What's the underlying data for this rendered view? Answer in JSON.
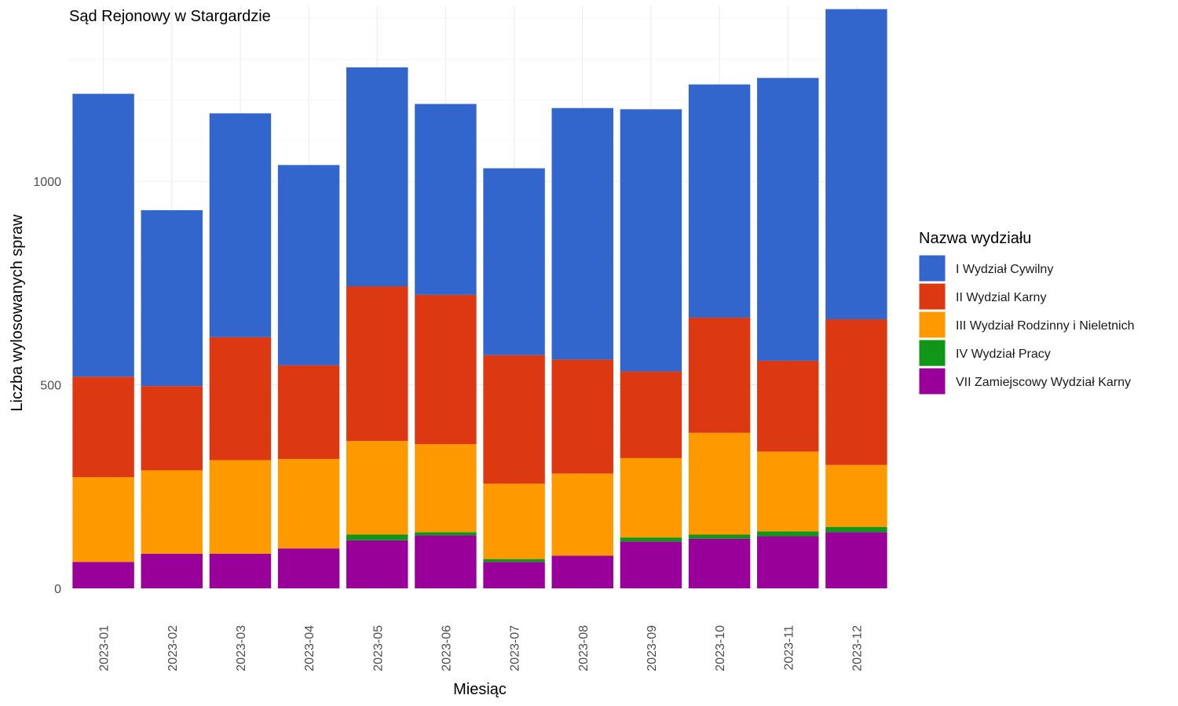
{
  "chart_data": {
    "type": "bar",
    "stacked": true,
    "title": "Sąd Rejonowy w Stargardzie",
    "xlabel": "Miesiąc",
    "ylabel": "Liczba wylosowanych spraw",
    "categories": [
      "2023-01",
      "2023-02",
      "2023-03",
      "2023-04",
      "2023-05",
      "2023-06",
      "2023-07",
      "2023-08",
      "2023-09",
      "2023-10",
      "2023-11",
      "2023-12"
    ],
    "ylim": [
      0,
      1430
    ],
    "yticks": [
      0,
      500,
      1000
    ],
    "grid": true,
    "legend_title": "Nazwa wydziału",
    "legend_position": "right",
    "series": [
      {
        "name": "VII Zamiejscowy Wydział Karny",
        "color": "#990099",
        "values": [
          65,
          85,
          85,
          98,
          118,
          130,
          65,
          80,
          115,
          122,
          128,
          138
        ]
      },
      {
        "name": "IV Wydział Pracy",
        "color": "#109618",
        "values": [
          0,
          0,
          0,
          0,
          14,
          8,
          7,
          0,
          10,
          10,
          12,
          13
        ]
      },
      {
        "name": "III Wydział Rodzinny i Nieletnich",
        "color": "#FF9900",
        "values": [
          208,
          205,
          230,
          220,
          230,
          216,
          185,
          202,
          195,
          250,
          196,
          152
        ]
      },
      {
        "name": "II Wydzial Karny",
        "color": "#DC3912",
        "values": [
          247,
          207,
          302,
          230,
          380,
          367,
          316,
          280,
          213,
          283,
          223,
          358
        ]
      },
      {
        "name": "I Wydział Cywilny",
        "color": "#3366CC",
        "values": [
          695,
          432,
          550,
          492,
          538,
          469,
          459,
          618,
          644,
          573,
          695,
          762
        ]
      }
    ],
    "legend_order": [
      "I Wydział Cywilny",
      "II Wydzial Karny",
      "III Wydział Rodzinny i Nieletnich",
      "IV Wydział Pracy",
      "VII Zamiejscowy Wydział Karny"
    ]
  }
}
